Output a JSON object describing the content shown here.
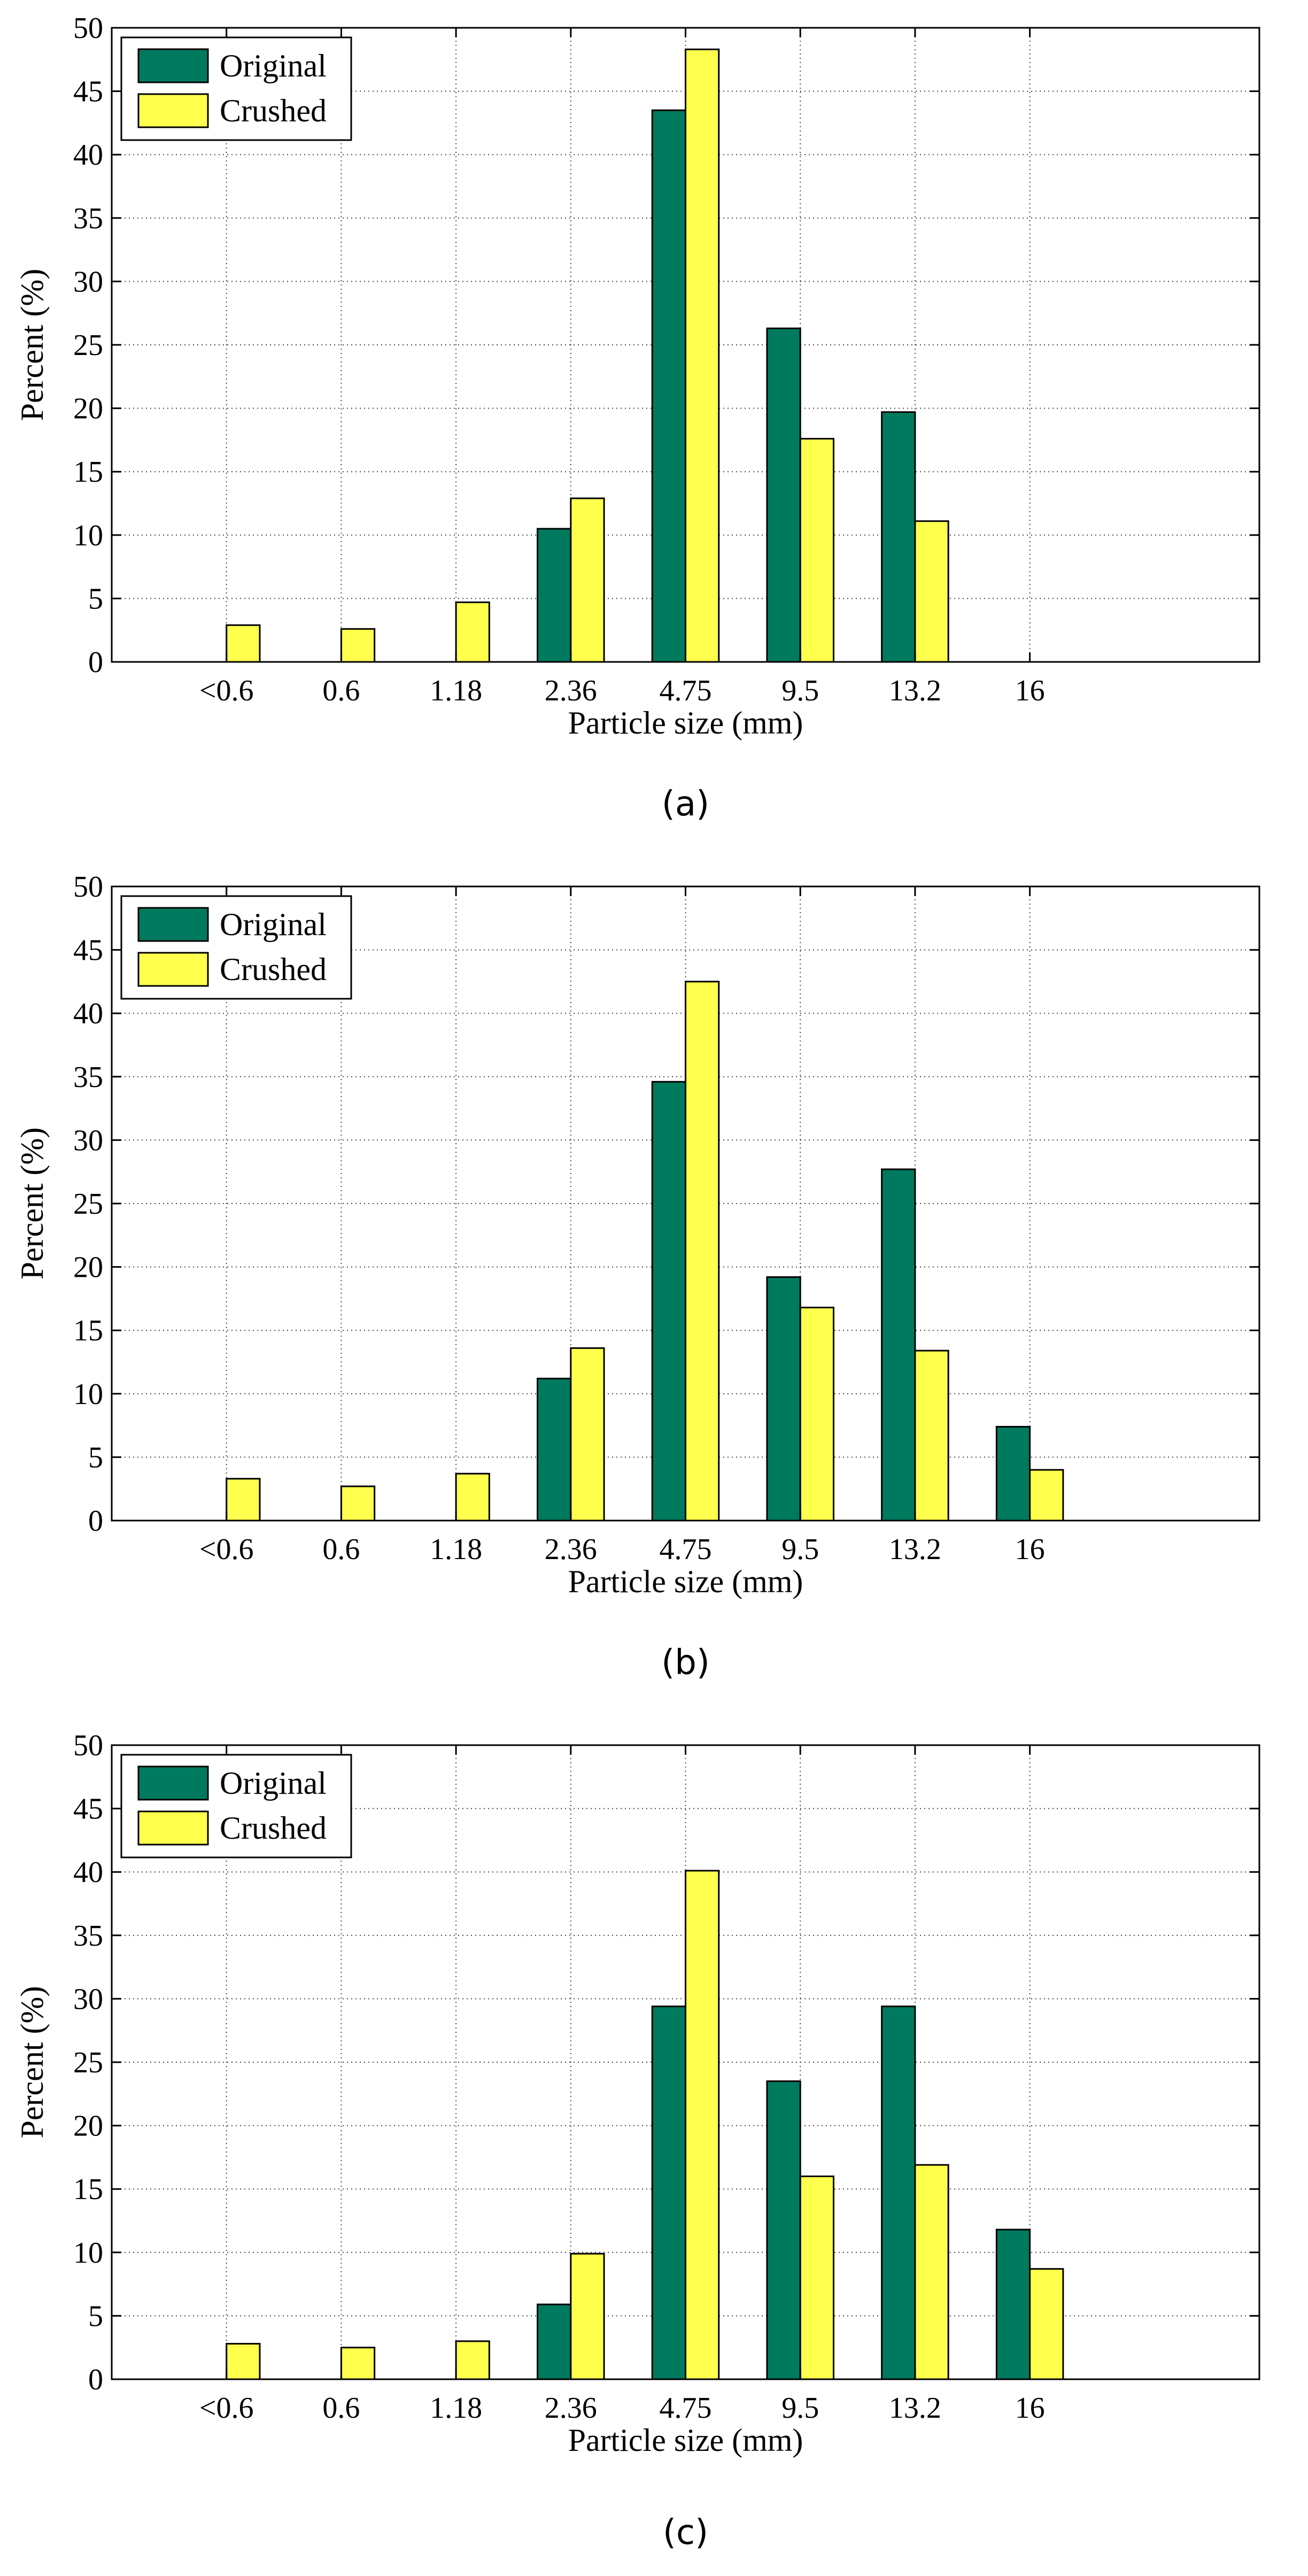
{
  "chart_data": [
    {
      "type": "bar",
      "panel_label": "(a)",
      "xlabel": "Particle size (mm)",
      "ylabel": "Percent (%)",
      "ylim": [
        0,
        50
      ],
      "yticks": [
        0,
        5,
        10,
        15,
        20,
        25,
        30,
        35,
        40,
        45,
        50
      ],
      "grid": true,
      "legend_position": "top-left",
      "categories": [
        "<0.6",
        "0.6",
        "1.18",
        "2.36",
        "4.75",
        "9.5",
        "13.2",
        "16"
      ],
      "series": [
        {
          "name": "Original",
          "color": "#007a5e",
          "values": [
            0,
            0,
            0,
            10.5,
            43.5,
            26.3,
            19.7,
            0
          ]
        },
        {
          "name": "Crushed",
          "color": "#ffff4d",
          "values": [
            2.9,
            2.6,
            4.7,
            12.9,
            48.3,
            17.6,
            11.1,
            0
          ]
        }
      ]
    },
    {
      "type": "bar",
      "panel_label": "(b)",
      "xlabel": "Particle size (mm)",
      "ylabel": "Percent (%)",
      "ylim": [
        0,
        50
      ],
      "yticks": [
        0,
        5,
        10,
        15,
        20,
        25,
        30,
        35,
        40,
        45,
        50
      ],
      "grid": true,
      "legend_position": "top-left",
      "categories": [
        "<0.6",
        "0.6",
        "1.18",
        "2.36",
        "4.75",
        "9.5",
        "13.2",
        "16"
      ],
      "series": [
        {
          "name": "Original",
          "color": "#007a5e",
          "values": [
            0,
            0,
            0,
            11.2,
            34.6,
            19.2,
            27.7,
            7.4
          ]
        },
        {
          "name": "Crushed",
          "color": "#ffff4d",
          "values": [
            3.3,
            2.7,
            3.7,
            13.6,
            42.5,
            16.8,
            13.4,
            4.0
          ]
        }
      ]
    },
    {
      "type": "bar",
      "panel_label": "(c)",
      "xlabel": "Particle size (mm)",
      "ylabel": "Percent (%)",
      "ylim": [
        0,
        50
      ],
      "yticks": [
        0,
        5,
        10,
        15,
        20,
        25,
        30,
        35,
        40,
        45,
        50
      ],
      "grid": true,
      "legend_position": "top-left",
      "categories": [
        "<0.6",
        "0.6",
        "1.18",
        "2.36",
        "4.75",
        "9.5",
        "13.2",
        "16"
      ],
      "series": [
        {
          "name": "Original",
          "color": "#007a5e",
          "values": [
            0,
            0,
            0,
            5.9,
            29.4,
            23.5,
            29.4,
            11.8
          ]
        },
        {
          "name": "Crushed",
          "color": "#ffff4d",
          "values": [
            2.8,
            2.5,
            3.0,
            9.9,
            40.1,
            16.0,
            16.9,
            8.7
          ]
        }
      ]
    }
  ]
}
